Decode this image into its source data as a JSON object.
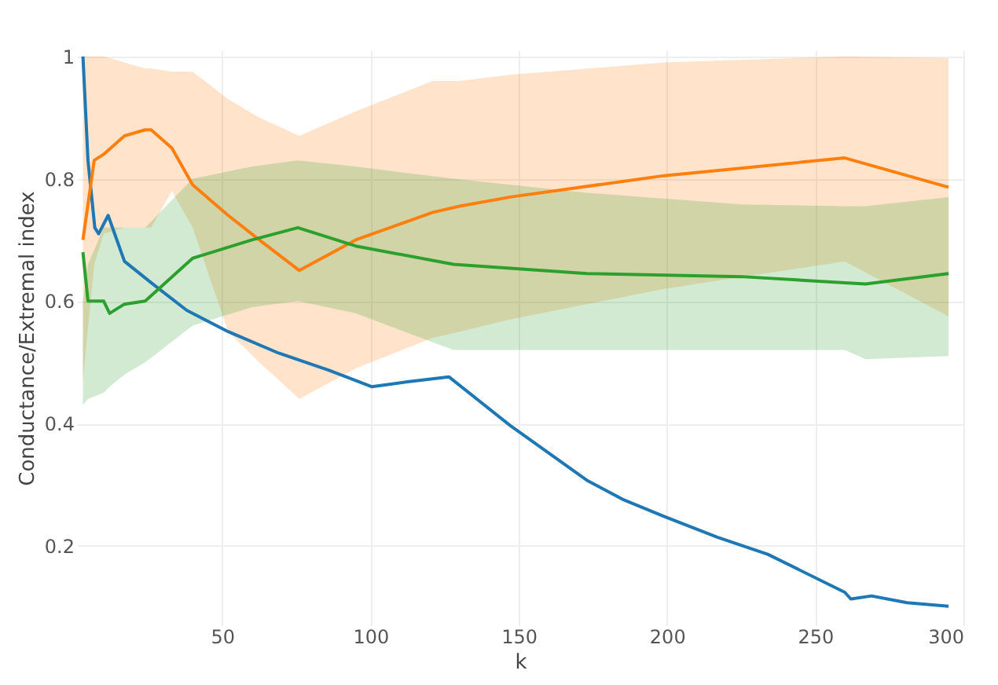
{
  "chart_data": {
    "type": "line",
    "xlabel": "k",
    "ylabel": "Conductance/Extremal index",
    "xlim": [
      1,
      300
    ],
    "ylim": [
      0.07,
      1.01
    ],
    "xticks": [
      50,
      100,
      150,
      200,
      250,
      300
    ],
    "yticks": [
      0.2,
      0.4,
      0.6,
      0.8,
      {
        "value": 1,
        "label": "1"
      }
    ],
    "grid": true,
    "legend": false,
    "line_style": "solid",
    "marker": "none",
    "series": [
      {
        "color": "#1f77b4",
        "x": [
          3,
          4.7,
          7,
          8.3,
          11.5,
          17,
          26,
          38,
          52,
          69,
          86,
          100.5,
          112.5,
          126.5,
          147,
          173,
          185,
          199,
          217,
          234,
          260,
          262,
          269,
          281,
          295
        ],
        "values": [
          1.0,
          0.83,
          0.72,
          0.71,
          0.74,
          0.665,
          0.63,
          0.585,
          0.55,
          0.515,
          0.487,
          0.46,
          0.468,
          0.476,
          0.397,
          0.307,
          0.276,
          0.248,
          0.214,
          0.186,
          0.124,
          0.113,
          0.118,
          0.107,
          0.101
        ]
      },
      {
        "color": "#ff7f0e",
        "x": [
          3,
          6.8,
          10,
          17,
          24,
          26,
          33,
          40,
          52,
          62.5,
          76,
          95,
          121,
          130,
          147,
          199,
          260,
          295
        ],
        "values": [
          0.7,
          0.83,
          0.84,
          0.87,
          0.88,
          0.88,
          0.85,
          0.79,
          0.74,
          0.7,
          0.65,
          0.7,
          0.745,
          0.755,
          0.77,
          0.805,
          0.834,
          0.786
        ],
        "lower": [
          0.47,
          0.66,
          0.71,
          0.72,
          0.72,
          0.72,
          0.78,
          0.72,
          0.55,
          0.5,
          0.44,
          0.49,
          0.54,
          0.55,
          0.57,
          0.62,
          0.665,
          0.575
        ],
        "upper": [
          1.0,
          1.0,
          1.0,
          0.99,
          0.98,
          0.98,
          0.975,
          0.975,
          0.93,
          0.9,
          0.87,
          0.91,
          0.96,
          0.96,
          0.97,
          0.99,
          1.0,
          0.997
        ]
      },
      {
        "color": "#2ca02c",
        "x": [
          3,
          4.7,
          10,
          12,
          17,
          24,
          40,
          60,
          75.5,
          95,
          128,
          173,
          225,
          260,
          267,
          295
        ],
        "values": [
          0.68,
          0.6,
          0.6,
          0.58,
          0.595,
          0.6,
          0.67,
          0.7,
          0.72,
          0.69,
          0.66,
          0.645,
          0.64,
          0.63,
          0.628,
          0.645
        ],
        "lower": [
          0.43,
          0.44,
          0.45,
          0.46,
          0.48,
          0.5,
          0.56,
          0.59,
          0.6,
          0.58,
          0.52,
          0.52,
          0.52,
          0.52,
          0.505,
          0.51
        ],
        "upper": [
          0.6,
          0.66,
          0.72,
          0.72,
          0.72,
          0.72,
          0.8,
          0.82,
          0.83,
          0.82,
          0.8,
          0.777,
          0.758,
          0.755,
          0.755,
          0.77
        ]
      }
    ]
  }
}
